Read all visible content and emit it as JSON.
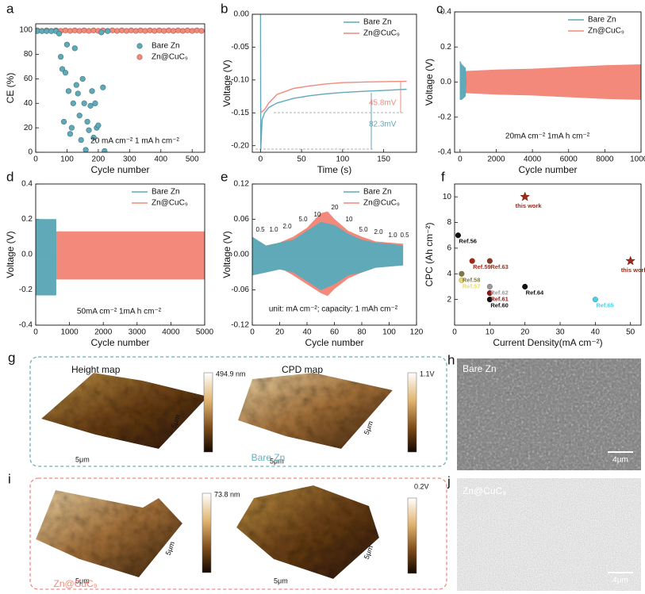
{
  "chart_data": [
    {
      "label": "a",
      "type": "scatter",
      "xlabel": "Cycle number",
      "ylabel": "CE (%)",
      "xlim": [
        0,
        540
      ],
      "xticks": [
        0,
        100,
        200,
        300,
        400,
        500
      ],
      "ylim": [
        0,
        105
      ],
      "yticks": [
        0,
        20,
        40,
        60,
        80,
        100
      ],
      "legend": "upper right",
      "annotation": "20 mA cm⁻²   1 mA h cm⁻²",
      "series": [
        {
          "name": "Bare Zn",
          "color": "#5fa9b8",
          "x": [
            5,
            20,
            35,
            50,
            65,
            75,
            80,
            85,
            90,
            95,
            100,
            105,
            110,
            115,
            120,
            125,
            130,
            135,
            140,
            145,
            150,
            155,
            160,
            165,
            170,
            175,
            180,
            185,
            190,
            195,
            200,
            210,
            215,
            220,
            230
          ],
          "values": [
            99,
            99,
            99,
            99,
            99,
            97,
            78,
            68,
            25,
            65,
            88,
            50,
            15,
            20,
            40,
            85,
            55,
            48,
            30,
            10,
            60,
            40,
            2,
            25,
            18,
            38,
            50,
            12,
            40,
            20,
            22,
            98,
            53,
            1,
            99
          ]
        },
        {
          "name": "Zn@CuC₉",
          "color": "#f2897a",
          "x": [
            5,
            20,
            35,
            50,
            65,
            80,
            95,
            110,
            125,
            140,
            155,
            170,
            185,
            200,
            215,
            230,
            245,
            260,
            275,
            290,
            305,
            320,
            335,
            350,
            365,
            380,
            395,
            410,
            425,
            440,
            455,
            470,
            485,
            500,
            515,
            530
          ],
          "values": [
            99.6,
            99.2,
            99.6,
            99.2,
            99.6,
            99.2,
            99.6,
            99.2,
            99.6,
            99.2,
            99.6,
            99.2,
            99.6,
            99.2,
            99.6,
            99.2,
            99.6,
            99.2,
            99.6,
            99.2,
            99.6,
            99.2,
            99.6,
            99.2,
            99.6,
            99.2,
            99.6,
            99.2,
            99.6,
            99.2,
            99.6,
            99.2,
            99.6,
            99.2,
            99.6,
            99.2
          ]
        }
      ]
    },
    {
      "label": "b",
      "type": "line",
      "xlabel": "Time (s)",
      "ylabel": "Voltage (V)",
      "xlim": [
        -10,
        190
      ],
      "xticks": [
        0,
        50,
        100,
        150
      ],
      "ylim": [
        -0.21,
        0
      ],
      "yticks": [
        {
          "value": -0.2,
          "label": "-0.20"
        },
        {
          "value": -0.15,
          "label": "-0.15"
        },
        {
          "value": -0.1,
          "label": "-0.10"
        },
        {
          "value": -0.05,
          "label": "-0.05"
        },
        {
          "value": 0,
          "label": "0.00"
        }
      ],
      "legend": "upper right",
      "annotations": [
        "45.8mV",
        "82.3mV"
      ],
      "series": [
        {
          "name": "Bare Zn",
          "color": "#5fa9b8",
          "x": [
            0,
            0.3,
            2,
            5,
            10,
            20,
            40,
            60,
            80,
            100,
            130,
            150,
            178
          ],
          "values": [
            0,
            -0.205,
            -0.16,
            -0.15,
            -0.142,
            -0.135,
            -0.128,
            -0.124,
            -0.121,
            -0.119,
            -0.117,
            -0.116,
            -0.114
          ]
        },
        {
          "name": "Zn@CuC₉",
          "color": "#f2897a",
          "x": [
            0,
            5,
            10,
            20,
            40,
            60,
            80,
            100,
            130,
            178
          ],
          "values": [
            -0.15,
            -0.145,
            -0.135,
            -0.122,
            -0.113,
            -0.109,
            -0.106,
            -0.104,
            -0.103,
            -0.102
          ]
        }
      ]
    },
    {
      "label": "c",
      "type": "band",
      "xlabel": "Cycle number",
      "ylabel": "Voltage (V)",
      "xlim": [
        -300,
        10000
      ],
      "xticks": [
        0,
        2000,
        4000,
        6000,
        8000,
        10000
      ],
      "ylim": [
        -0.4,
        0.4
      ],
      "yticks": [
        -0.4,
        -0.2,
        {
          "value": 0,
          "label": "0.0"
        },
        0.2,
        0.4
      ],
      "legend": "upper right",
      "annotation": "20mA cm⁻²  1mA h cm⁻²",
      "series": [
        {
          "name": "Bare Zn",
          "color": "#5fa9b8",
          "x": [
            0,
            100,
            200,
            300,
            350
          ],
          "values": [
            0.12,
            0.1,
            0.09,
            0.08,
            0
          ],
          "lower": [
            -0.1,
            -0.1,
            -0.09,
            -0.08,
            0
          ]
        },
        {
          "name": "Zn@CuC₉",
          "color": "#f2897a",
          "x": [
            0,
            2000,
            4000,
            6000,
            8000,
            10000
          ],
          "values": [
            0.06,
            0.07,
            0.075,
            0.085,
            0.095,
            0.1
          ],
          "lower": [
            -0.06,
            -0.07,
            -0.075,
            -0.085,
            -0.095,
            -0.1
          ]
        }
      ]
    },
    {
      "label": "d",
      "type": "band",
      "xlabel": "Cycle number",
      "ylabel": "Voltage (V)",
      "xlim": [
        0,
        5000
      ],
      "xticks": [
        0,
        1000,
        2000,
        3000,
        4000,
        5000
      ],
      "ylim": [
        -0.4,
        0.4
      ],
      "yticks": [
        -0.4,
        -0.2,
        {
          "value": 0,
          "label": "0.0"
        },
        0.2,
        0.4
      ],
      "legend": "upper right",
      "annotation": "50mA cm⁻²  1mA h cm⁻²",
      "series": [
        {
          "name": "Bare Zn",
          "color": "#5fa9b8",
          "x": [
            0,
            600
          ],
          "values": [
            0.2,
            0.2
          ],
          "lower": [
            -0.23,
            -0.23
          ]
        },
        {
          "name": "Zn@CuC₉",
          "color": "#f2897a",
          "x": [
            0,
            1000,
            2000,
            3000,
            4000,
            5000
          ],
          "values": [
            0.13,
            0.13,
            0.13,
            0.13,
            0.13,
            0.13
          ],
          "lower": [
            -0.14,
            -0.14,
            -0.14,
            -0.14,
            -0.14,
            -0.14
          ]
        }
      ]
    },
    {
      "label": "e",
      "type": "band",
      "xlabel": "Cycle number",
      "ylabel": "Voltage (V)",
      "xlim": [
        0,
        120
      ],
      "xticks": [
        0,
        20,
        40,
        60,
        80,
        100,
        120
      ],
      "ylim": [
        -0.12,
        0.12
      ],
      "yticks": [
        -0.12,
        -0.06,
        {
          "value": 0,
          "label": "0.00"
        },
        0.06,
        0.12
      ],
      "legend": "upper right",
      "annotation": "unit: mA cm⁻²; capacity: 1 mAh cm⁻²",
      "rates": [
        "0.5",
        "1.0",
        "2.0",
        "5.0",
        "10",
        "20",
        "10",
        "5.0",
        "2.0",
        "1.0",
        "0.5"
      ],
      "series": [
        {
          "name": "Bare Zn",
          "color": "#5fa9b8",
          "x": [
            0,
            10,
            20,
            30,
            40,
            50,
            60,
            70,
            80,
            90,
            100,
            110
          ],
          "values": [
            0.03,
            0.015,
            0.02,
            0.025,
            0.04,
            0.055,
            0.05,
            0.035,
            0.025,
            0.02,
            0.018,
            0.015
          ],
          "lower": [
            -0.035,
            -0.03,
            -0.025,
            -0.03,
            -0.045,
            -0.06,
            -0.05,
            -0.035,
            -0.03,
            -0.022,
            -0.02,
            -0.018
          ]
        },
        {
          "name": "Zn@CuC₉",
          "color": "#f2897a",
          "x": [
            0,
            10,
            20,
            30,
            40,
            50,
            55,
            60,
            70,
            80,
            90,
            100,
            110
          ],
          "values": [
            0.012,
            0.015,
            0.02,
            0.03,
            0.045,
            0.07,
            0.073,
            0.06,
            0.04,
            0.03,
            0.022,
            0.02,
            0.018
          ],
          "lower": [
            -0.012,
            -0.015,
            -0.022,
            -0.035,
            -0.05,
            -0.065,
            -0.07,
            -0.058,
            -0.04,
            -0.03,
            -0.022,
            -0.02,
            -0.018
          ]
        }
      ]
    },
    {
      "label": "f",
      "type": "scatter",
      "xlabel": "Current Density(mA cm⁻²)",
      "ylabel": "CPC (Ah cm⁻²)",
      "xlim": [
        0,
        53
      ],
      "xticks": [
        0,
        10,
        20,
        30,
        40,
        50
      ],
      "ylim": [
        0,
        11
      ],
      "yticks": [
        2,
        4,
        6,
        8,
        10
      ],
      "labels": [
        "this work",
        "Ref.56",
        "Ref.59",
        "Ref.63",
        "Ref.58",
        "Ref.57",
        "Ref.62",
        "Ref.61",
        "Ref.64",
        "Ref.60",
        "Ref.65",
        "this work"
      ],
      "x": [
        20,
        1,
        5,
        10,
        2,
        2,
        10,
        10,
        20,
        10,
        40,
        50
      ],
      "values": [
        10,
        7,
        5,
        5,
        4,
        3.5,
        3,
        2.5,
        3,
        2,
        2,
        5
      ],
      "colors": [
        "#9b2a1a",
        "#111111",
        "#a6281c",
        "#8a3a2a",
        "#7d7a45",
        "#e8d96a",
        "#9a9a9a",
        "#8b1a1a",
        "#111111",
        "#111111",
        "#4fd0e0",
        "#9b2a1a"
      ],
      "markers": [
        "star",
        "circle",
        "circle",
        "circle",
        "circle",
        "circle",
        "circle",
        "circle",
        "circle",
        "circle",
        "circle",
        "star"
      ]
    }
  ],
  "images": [
    {
      "label": "g",
      "title": "Bare Zn",
      "maps": [
        {
          "title": "Height map",
          "scale": "494.9 nm"
        },
        {
          "title": "CPD map",
          "scale": "1.1V"
        }
      ],
      "axis_labels": [
        "5μm",
        "5μm",
        "5μm",
        "5μm"
      ]
    },
    {
      "label": "h",
      "title": "Bare Zn",
      "scale_bar": "4μm"
    },
    {
      "label": "i",
      "title": "Zn@CuC₉",
      "maps": [
        {
          "scale": "73.8 nm"
        },
        {
          "scale": "0.2V"
        }
      ],
      "axis_labels": [
        "5μm",
        "5μm",
        "5μm",
        "5μm"
      ]
    },
    {
      "label": "j",
      "title": "Zn@CuC₉",
      "scale_bar": "4μm"
    }
  ]
}
